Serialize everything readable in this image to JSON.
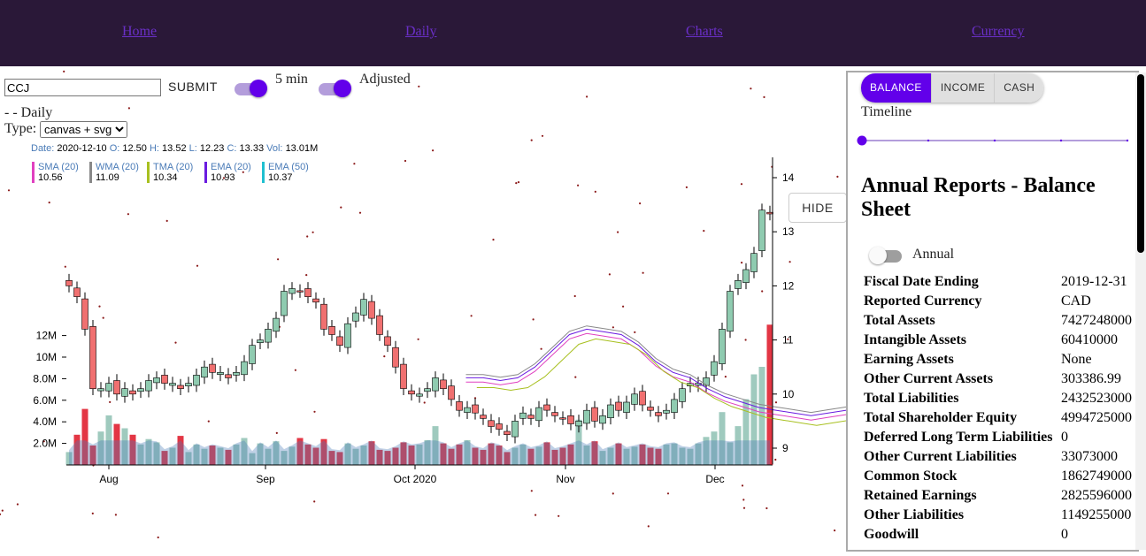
{
  "nav": {
    "links": [
      "Home",
      "Daily",
      "Charts",
      "Currency"
    ]
  },
  "toolbar": {
    "ticker_value": "CCJ",
    "submit_label": "SUBMIT",
    "interval_label": "5 min",
    "adjusted_label": "Adjusted",
    "status_text": "- - Daily",
    "type_label": "Type:",
    "type_selected": "canvas + svg"
  },
  "ohlc": {
    "date_label": "Date:",
    "date": "2020-12-10",
    "open_label": "O:",
    "open": "12.50",
    "high_label": "H:",
    "high": "13.52",
    "low_label": "L:",
    "low": "12.23",
    "close_label": "C:",
    "close": "13.33",
    "vol_label": "Vol:",
    "vol": "13.01M"
  },
  "indicators": [
    {
      "name": "SMA (20)",
      "value": "10.56",
      "color": "#e040c0"
    },
    {
      "name": "WMA (20)",
      "value": "11.09",
      "color": "#888888"
    },
    {
      "name": "TMA (20)",
      "value": "10.34",
      "color": "#a8c020"
    },
    {
      "name": "EMA (20)",
      "value": "10.93",
      "color": "#6a1be0"
    },
    {
      "name": "EMA (50)",
      "value": "10.37",
      "color": "#20c0d0"
    }
  ],
  "chart_data": {
    "type": "candlestick",
    "price_axis": {
      "ticks": [
        "14",
        "13",
        "12",
        "11",
        "10",
        "9"
      ],
      "range": [
        8.7,
        14.4
      ]
    },
    "volume_axis": {
      "ticks": [
        "12M",
        "10M",
        "8.0M",
        "6.0M",
        "4.0M",
        "2.0M"
      ],
      "range": [
        0,
        13.5
      ]
    },
    "x_ticks": [
      "Aug",
      "Sep",
      "Oct 2020",
      "Nov",
      "Dec"
    ],
    "close_series": [
      12.0,
      11.8,
      11.2,
      10.1,
      10.1,
      10.2,
      10.0,
      10.1,
      10.0,
      10.1,
      10.25,
      10.3,
      10.2,
      10.2,
      10.1,
      10.2,
      10.35,
      10.5,
      10.4,
      10.4,
      10.3,
      10.4,
      10.6,
      10.9,
      11.0,
      11.2,
      11.4,
      11.9,
      11.95,
      11.9,
      11.8,
      11.7,
      11.2,
      11.1,
      10.9,
      11.3,
      11.5,
      11.75,
      11.4,
      11.1,
      10.9,
      10.5,
      10.1,
      10.0,
      10.0,
      10.1,
      10.3,
      10.1,
      9.9,
      9.7,
      9.75,
      9.65,
      9.55,
      9.4,
      9.35,
      9.25,
      9.5,
      9.65,
      9.55,
      9.75,
      9.7,
      9.6,
      9.55,
      9.45,
      9.5,
      9.7,
      9.5,
      9.6,
      9.8,
      9.7,
      9.85,
      10.0,
      9.8,
      9.7,
      9.6,
      9.7,
      9.9,
      10.1,
      10.2,
      10.2,
      10.3,
      10.6,
      11.2,
      11.9,
      12.1,
      12.3,
      12.6,
      13.4,
      13.33
    ],
    "volume_series": [
      1.2,
      2.8,
      5.2,
      1.8,
      3.1,
      4.6,
      3.8,
      3.4,
      2.8,
      1.9,
      2.4,
      2.1,
      1.3,
      1.6,
      2.7,
      1.2,
      1.9,
      1.5,
      1.8,
      1.6,
      1.4,
      1.9,
      2.5,
      1.1,
      2.0,
      1.5,
      2.2,
      1.3,
      1.7,
      2.5,
      1.9,
      1.6,
      2.4,
      1.3,
      1.2,
      2.0,
      1.5,
      1.8,
      2.2,
      1.4,
      1.3,
      1.6,
      2.1,
      1.8,
      1.9,
      2.3,
      3.6,
      2.0,
      1.5,
      1.9,
      2.3,
      1.6,
      1.4,
      2.0,
      1.8,
      1.2,
      1.6,
      1.9,
      1.5,
      1.7,
      2.1,
      1.4,
      1.6,
      1.9,
      4.2,
      1.8,
      2.2,
      1.3,
      1.6,
      2.0,
      1.5,
      1.7,
      1.9,
      1.6,
      1.5,
      1.9,
      2.0,
      1.6,
      1.5,
      2.0,
      2.6,
      3.1,
      4.9,
      2.1,
      3.6,
      6.1,
      8.4,
      9.1,
      13.01
    ],
    "ema20": [
      10.3,
      10.3,
      10.25,
      10.3,
      10.5,
      10.8,
      11.1,
      11.2,
      11.15,
      11.1,
      10.9,
      10.6,
      10.4,
      10.3,
      10.1,
      9.95,
      9.85,
      9.75,
      9.7,
      9.65,
      9.6,
      9.65,
      9.7,
      9.75,
      9.8,
      9.85,
      9.9,
      10.0,
      10.3,
      10.6,
      10.93
    ],
    "ema50": [
      10.6,
      10.58,
      10.55,
      10.5,
      10.45,
      10.35,
      10.25,
      10.15,
      10.05,
      9.95,
      9.9,
      9.88,
      9.9,
      9.95,
      10.05,
      10.2,
      10.37
    ]
  },
  "hide_button": "HIDE",
  "report_panel": {
    "tabs": [
      "BALANCE",
      "INCOME",
      "CASH"
    ],
    "active_tab": "BALANCE",
    "timeline_label": "Timeline",
    "title": "Annual Reports - Balance Sheet",
    "annual_label": "Annual",
    "rows": [
      {
        "key": "Fiscal Date Ending",
        "value": "2019-12-31"
      },
      {
        "key": "Reported Currency",
        "value": "CAD"
      },
      {
        "key": "Total Assets",
        "value": "7427248000"
      },
      {
        "key": "Intangible Assets",
        "value": "60410000"
      },
      {
        "key": "Earning Assets",
        "value": "None"
      },
      {
        "key": "Other Current Assets",
        "value": "303386.99"
      },
      {
        "key": "Total Liabilities",
        "value": "2432523000"
      },
      {
        "key": "Total Shareholder Equity",
        "value": "4994725000"
      },
      {
        "key": "Deferred Long Term Liabilities",
        "value": "0"
      },
      {
        "key": "Other Current Liabilities",
        "value": "33073000"
      },
      {
        "key": "Common Stock",
        "value": "1862749000"
      },
      {
        "key": "Retained Earnings",
        "value": "2825596000"
      },
      {
        "key": "Other Liabilities",
        "value": "1149255000"
      },
      {
        "key": "Goodwill",
        "value": "0"
      }
    ]
  }
}
